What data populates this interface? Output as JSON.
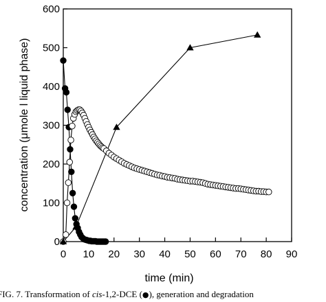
{
  "chart_data": {
    "type": "scatter",
    "title": "",
    "xlabel": "time (min)",
    "ylabel": "concentration (μmole l liquid phase)",
    "xlim": [
      0,
      90
    ],
    "ylim": [
      0,
      600
    ],
    "xticks": [
      0,
      10,
      20,
      30,
      40,
      50,
      60,
      70,
      80,
      90
    ],
    "yticks": [
      0,
      100,
      200,
      300,
      400,
      500,
      600
    ],
    "grid": false,
    "legend": "none",
    "series": [
      {
        "marker": "filled-circle",
        "line": true,
        "color": "#000000",
        "x": [
          0,
          0.7,
          1.2,
          1.7,
          2.2,
          2.7,
          3.2,
          3.7,
          4.2,
          4.7,
          5.2,
          5.7,
          6.2,
          6.7,
          7.2,
          7.7,
          8.2,
          8.7,
          9.2,
          9.7,
          10.2,
          10.7,
          11.2,
          11.7,
          12.2,
          12.7,
          13.2,
          13.7,
          14.2,
          14.7,
          15.2,
          15.7,
          16.2,
          16.7
        ],
        "y": [
          467,
          395,
          385,
          340,
          295,
          238,
          180,
          125,
          90,
          60,
          45,
          35,
          25,
          18,
          12,
          9,
          6,
          5,
          4,
          3,
          2,
          2,
          1,
          1,
          1,
          1,
          0,
          0,
          0,
          0,
          0,
          0,
          0,
          0
        ]
      },
      {
        "marker": "open-circle",
        "line": true,
        "color": "#000000",
        "x": [
          0,
          1,
          1.5,
          2,
          2.5,
          3,
          3.5,
          4,
          4.5,
          5,
          5.5,
          6,
          6.5,
          7,
          7.5,
          8,
          8.5,
          9,
          9.5,
          10,
          10.5,
          11,
          11.5,
          12,
          12.5,
          13,
          13.5,
          14,
          14.5,
          15,
          15.5,
          16,
          17,
          18,
          19,
          20,
          21,
          22,
          23,
          24,
          25,
          26,
          27,
          28,
          29,
          30,
          31,
          32,
          33,
          34,
          35,
          36,
          37,
          38,
          39,
          40,
          41,
          42,
          43,
          44,
          45,
          46,
          47,
          48,
          49,
          50,
          51,
          52,
          53,
          54,
          55,
          56,
          57,
          58,
          59,
          60,
          61,
          62,
          63,
          64,
          65,
          66,
          67,
          68,
          69,
          70,
          71,
          72,
          73,
          74,
          75,
          76,
          77,
          78,
          79,
          80,
          81
        ],
        "y": [
          0,
          18,
          100,
          152,
          205,
          262,
          298,
          318,
          328,
          335,
          338,
          340,
          340,
          337,
          332,
          326,
          318,
          310,
          302,
          295,
          288,
          282,
          276,
          270,
          265,
          260,
          256,
          252,
          248,
          245,
          242,
          240,
          234,
          228,
          223,
          218,
          214,
          210,
          206,
          202,
          199,
          196,
          193,
          190,
          188,
          186,
          184,
          182,
          180,
          178,
          176,
          174,
          172,
          171,
          169,
          168,
          166,
          165,
          164,
          163,
          161,
          160,
          159,
          158,
          157,
          156,
          156,
          155,
          154,
          153,
          152,
          150,
          148,
          147,
          146,
          145,
          144,
          143,
          142,
          141,
          140,
          139,
          138,
          137,
          137,
          136,
          135,
          134,
          133,
          132,
          131,
          130,
          130,
          129,
          129,
          128,
          128
        ]
      },
      {
        "marker": "filled-triangle",
        "line": true,
        "color": "#000000",
        "x": [
          0,
          5,
          21,
          50,
          76.5
        ],
        "y": [
          0,
          38,
          295,
          500,
          533
        ]
      }
    ]
  },
  "caption": {
    "prefix": "FIG. 7. Transformation of ",
    "italic": "cis",
    "middle": "-1,2-DCE (",
    "symbol": "●",
    "suffix": "), generation and degradation"
  }
}
